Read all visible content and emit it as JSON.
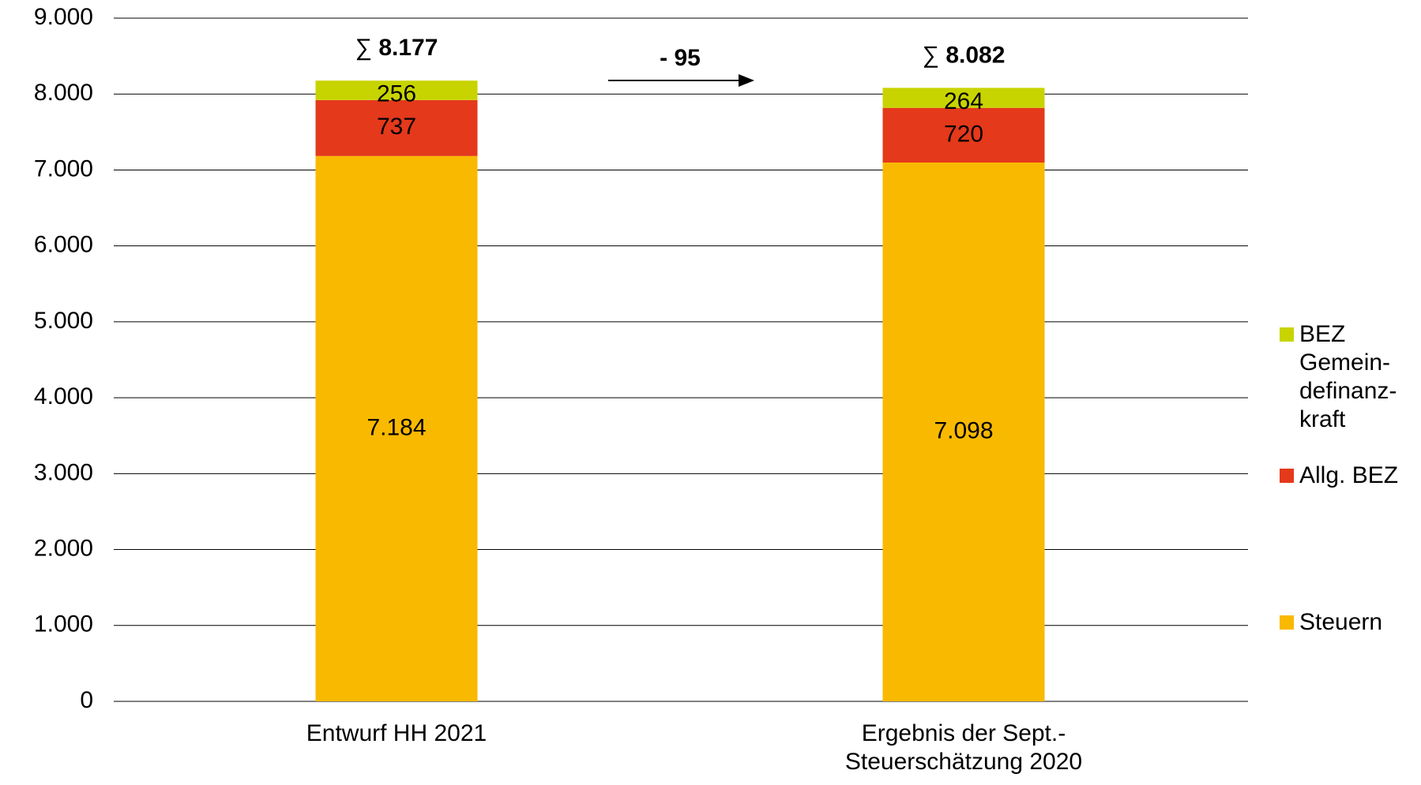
{
  "chart_data": {
    "type": "stacked_bar",
    "categories": [
      "Entwurf HH 2021",
      "Ergebnis der Sept.-\nSteuerschätzung 2020"
    ],
    "series": [
      {
        "name": "Steuern",
        "color": "#f9b900",
        "values": [
          7184,
          7098
        ],
        "value_labels": [
          "7.184",
          "7.098"
        ]
      },
      {
        "name": "Allg. BEZ",
        "color": "#e4391b",
        "values": [
          737,
          720
        ]
      },
      {
        "name": "BEZ\nGemein-\ndefinanz-\nkraft",
        "color": "#c8d400",
        "values": [
          256,
          264
        ]
      }
    ],
    "totals": {
      "values": [
        8177,
        8082
      ],
      "value_labels": [
        "8.177",
        "8.082"
      ],
      "symbol": "∑"
    },
    "difference": {
      "value": -95,
      "label": "- 95"
    },
    "ylim": [
      0,
      9000
    ],
    "yticks": [
      0,
      {
        "value": 1000,
        "label": "1.000"
      },
      {
        "value": 2000,
        "label": "2.000"
      },
      {
        "value": 3000,
        "label": "3.000"
      },
      {
        "value": 4000,
        "label": "4.000"
      },
      {
        "value": 5000,
        "label": "5.000"
      },
      {
        "value": 6000,
        "label": "6.000"
      },
      {
        "value": 7000,
        "label": "7.000"
      },
      {
        "value": 8000,
        "label": "8.000"
      },
      {
        "value": 9000,
        "label": "9.000"
      }
    ],
    "grid": true,
    "legend": "right"
  }
}
